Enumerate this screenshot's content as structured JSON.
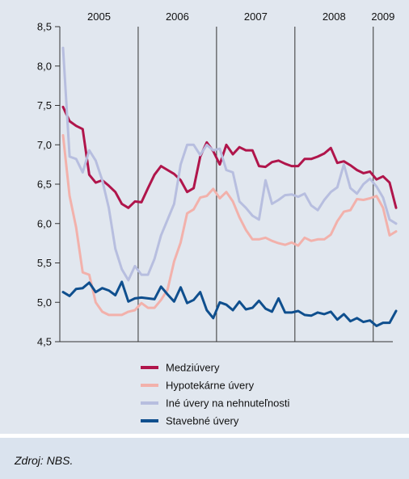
{
  "source": "Zdroj: NBS.",
  "chart_data": {
    "type": "line",
    "ylim": [
      4.5,
      8.5
    ],
    "yticks": [
      "8,5",
      "8,0",
      "7,5",
      "7,0",
      "6,5",
      "6,0",
      "5,5",
      "5,0",
      "4,5"
    ],
    "ytick_values": [
      8.5,
      8.0,
      7.5,
      7.0,
      6.5,
      6.0,
      5.5,
      5.0,
      4.5
    ],
    "years": [
      "2005",
      "2006",
      "2007",
      "2008",
      "2009"
    ],
    "months_per_year": [
      12,
      12,
      12,
      12,
      3
    ],
    "legend_placement": "bottom",
    "series": [
      {
        "name": "Medziúvery",
        "color": "#b0154b",
        "values": [
          7.48,
          7.3,
          7.24,
          7.2,
          6.62,
          6.52,
          6.55,
          6.48,
          6.4,
          6.25,
          6.2,
          6.28,
          6.27,
          6.45,
          6.62,
          6.73,
          6.68,
          6.63,
          6.55,
          6.4,
          6.45,
          6.85,
          7.03,
          6.92,
          6.75,
          7.0,
          6.88,
          6.97,
          6.93,
          6.93,
          6.73,
          6.72,
          6.78,
          6.8,
          6.76,
          6.73,
          6.73,
          6.82,
          6.82,
          6.85,
          6.89,
          6.96,
          6.77,
          6.79,
          6.74,
          6.68,
          6.64,
          6.66,
          6.56,
          6.6,
          6.52,
          6.2
        ]
      },
      {
        "name": "Hypotekárne úvery",
        "color": "#f2b1ab",
        "values": [
          7.12,
          6.35,
          5.95,
          5.38,
          5.35,
          5.0,
          4.88,
          4.84,
          4.84,
          4.84,
          4.88,
          4.9,
          4.99,
          4.93,
          4.93,
          5.03,
          5.16,
          5.52,
          5.76,
          6.13,
          6.18,
          6.33,
          6.35,
          6.44,
          6.32,
          6.4,
          6.28,
          6.08,
          5.92,
          5.8,
          5.8,
          5.82,
          5.78,
          5.75,
          5.73,
          5.76,
          5.72,
          5.82,
          5.78,
          5.8,
          5.8,
          5.86,
          6.03,
          6.15,
          6.17,
          6.31,
          6.3,
          6.32,
          6.35,
          6.2,
          5.85,
          5.9
        ]
      },
      {
        "name": "Iné úvery na nehnuteľnosti",
        "color": "#b7bedf",
        "values": [
          8.23,
          6.85,
          6.82,
          6.65,
          6.93,
          6.8,
          6.55,
          6.2,
          5.68,
          5.42,
          5.28,
          5.46,
          5.35,
          5.35,
          5.55,
          5.85,
          6.05,
          6.25,
          6.75,
          7.0,
          7.0,
          6.87,
          7.0,
          6.93,
          6.95,
          6.68,
          6.65,
          6.28,
          6.2,
          6.1,
          6.05,
          6.55,
          6.25,
          6.3,
          6.36,
          6.37,
          6.34,
          6.38,
          6.23,
          6.17,
          6.3,
          6.4,
          6.46,
          6.75,
          6.45,
          6.38,
          6.5,
          6.57,
          6.47,
          6.33,
          6.05,
          6.0
        ]
      },
      {
        "name": "Stavebné úvery",
        "color": "#0f4f8e",
        "values": [
          5.13,
          5.08,
          5.17,
          5.18,
          5.25,
          5.13,
          5.18,
          5.15,
          5.09,
          5.26,
          5.01,
          5.05,
          5.06,
          5.05,
          5.04,
          5.2,
          5.1,
          5.01,
          5.19,
          4.99,
          5.03,
          5.13,
          4.9,
          4.8,
          5.0,
          4.97,
          4.9,
          5.01,
          4.91,
          4.93,
          5.02,
          4.92,
          4.88,
          5.05,
          4.87,
          4.87,
          4.89,
          4.84,
          4.83,
          4.87,
          4.85,
          4.88,
          4.78,
          4.85,
          4.76,
          4.8,
          4.75,
          4.77,
          4.7,
          4.74,
          4.74,
          4.89
        ]
      }
    ]
  }
}
